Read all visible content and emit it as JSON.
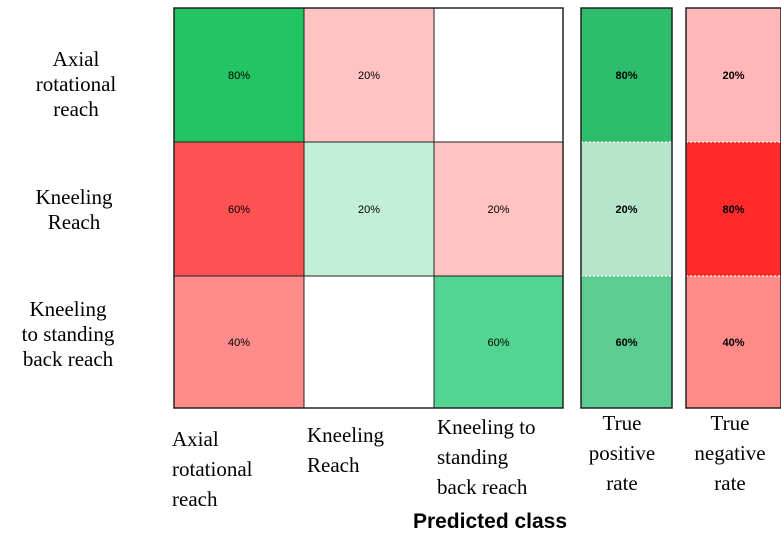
{
  "chart_data": {
    "type": "heatmap",
    "title": "",
    "xlabel": "Predicted class",
    "row_labels": [
      [
        "Axial",
        "rotational",
        "reach"
      ],
      [
        "Kneeling",
        "Reach"
      ],
      [
        "Kneeling",
        "to standing",
        "back reach"
      ]
    ],
    "col_labels": [
      [
        "Axial",
        "rotational",
        "reach"
      ],
      [
        "Kneeling",
        "Reach"
      ],
      [
        "Kneeling to",
        "standing",
        "back reach"
      ]
    ],
    "matrix": [
      [
        "80%",
        "20%",
        ""
      ],
      [
        "60%",
        "20%",
        "20%"
      ],
      [
        "40%",
        "",
        "60%"
      ]
    ],
    "matrix_values": [
      [
        80,
        20,
        null
      ],
      [
        60,
        20,
        20
      ],
      [
        40,
        null,
        60
      ]
    ],
    "cell_colors": [
      [
        "#23c463",
        "#ffc3c2",
        "#ffffff"
      ],
      [
        "#ff5252",
        "#c3eed8",
        "#ffc3c2"
      ],
      [
        "#ff8b8b",
        "#ffffff",
        "#52d590"
      ]
    ],
    "side_columns": [
      {
        "label": [
          "True",
          "positive",
          "rate"
        ],
        "values": [
          "80%",
          "20%",
          "60%"
        ],
        "numeric": [
          80,
          20,
          60
        ],
        "colors": [
          "#2ebd6c",
          "#b6e5cc",
          "#5ccc91"
        ]
      },
      {
        "label": [
          "True",
          "negative",
          "rate"
        ],
        "values": [
          "20%",
          "80%",
          "40%"
        ],
        "numeric": [
          20,
          80,
          40
        ],
        "colors": [
          "#ffb7b7",
          "#ff2b2b",
          "#ff8a8a"
        ]
      }
    ]
  }
}
